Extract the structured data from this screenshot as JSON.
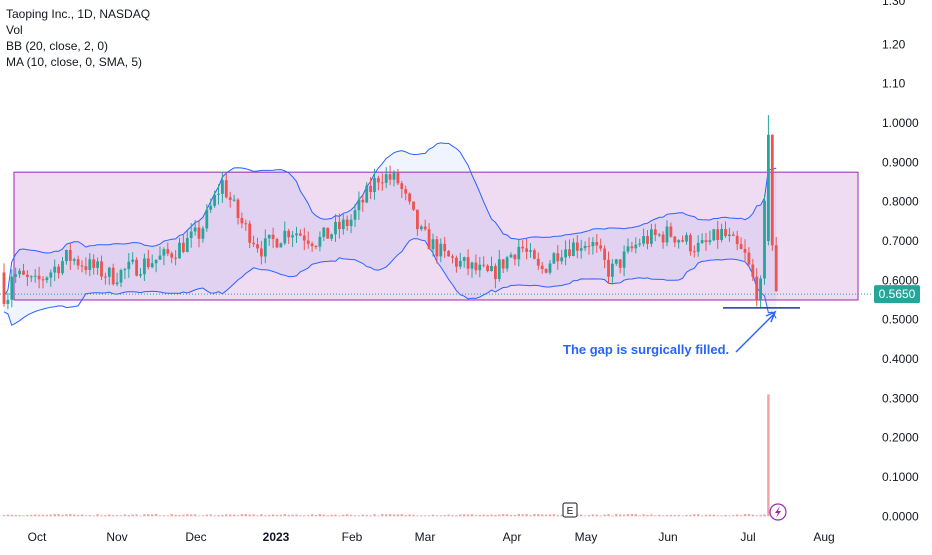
{
  "legend": {
    "title": "Taoping Inc., 1D, NASDAQ",
    "vol": "Vol",
    "bb": "BB (20, close, 2, 0)",
    "ma": "MA (10, close, 0, SMA, 5)"
  },
  "colors": {
    "up": "#26a69a",
    "down": "#ef5350",
    "band": "#2962ff",
    "rect_fill": "#e1bee7",
    "rect_stroke": "#9c27b0",
    "price_tag": "#26a69a",
    "annotation": "#2962ff",
    "volume": "#f0a3a3"
  },
  "price_tag": "0.5650",
  "annotation_text": "The gap is surgically filled.",
  "earnings_marker": "E",
  "icons": [
    "lightning-icon"
  ],
  "chart_data": {
    "type": "candlestick",
    "title": "Taoping Inc., 1D, NASDAQ",
    "price_axis_ticks": [
      "1.20",
      "1.10",
      "1.0000",
      "0.9000",
      "0.8000",
      "0.7000",
      "0.6000",
      "0.5000",
      "0.4000",
      "0.3000",
      "0.2000",
      "0.1000",
      "0.0000"
    ],
    "x_axis_ticks": [
      "Oct",
      "Nov",
      "Dec",
      "2023",
      "Feb",
      "Mar",
      "Apr",
      "May",
      "Jun",
      "Jul",
      "Aug"
    ],
    "ylim": [
      0.37,
      1.27
    ],
    "last_price": 0.565,
    "highlight_range": {
      "low": 0.55,
      "high": 0.875,
      "from": "Sep",
      "to": "Jul"
    },
    "support_line": 0.53,
    "series": [
      {
        "name": "Price",
        "keypoints": [
          [
            "Sep",
            0.62
          ],
          [
            "Oct",
            0.59
          ],
          [
            "Oct",
            0.66
          ],
          [
            "Nov",
            0.61
          ],
          [
            "Nov",
            0.64
          ],
          [
            "Nov",
            0.66
          ],
          [
            "Dec",
            0.72
          ],
          [
            "Dec",
            0.85
          ],
          [
            "Dec",
            0.75
          ],
          [
            "Dec",
            0.68
          ],
          [
            "2023",
            0.73
          ],
          [
            "2023",
            0.7
          ],
          [
            "Feb",
            0.75
          ],
          [
            "Feb",
            0.87
          ],
          [
            "Feb",
            0.85
          ],
          [
            "Mar",
            0.72
          ],
          [
            "Mar",
            0.66
          ],
          [
            "Apr",
            0.61
          ],
          [
            "Apr",
            0.69
          ],
          [
            "Apr",
            0.62
          ],
          [
            "May",
            0.68
          ],
          [
            "May",
            0.7
          ],
          [
            "May",
            0.62
          ],
          [
            "Jun",
            0.7
          ],
          [
            "Jun",
            0.72
          ],
          [
            "Jun",
            0.68
          ],
          [
            "Jul",
            0.72
          ],
          [
            "Jul",
            0.66
          ],
          [
            "Jul",
            0.55
          ],
          [
            "Jul",
            0.96
          ],
          [
            "Jul",
            0.7
          ],
          [
            "Jul",
            0.6
          ],
          [
            "Jul",
            0.52
          ],
          [
            "Jul",
            0.565
          ]
        ]
      }
    ],
    "volume": {
      "spike": 0.31,
      "spike_label": "Jul"
    }
  }
}
